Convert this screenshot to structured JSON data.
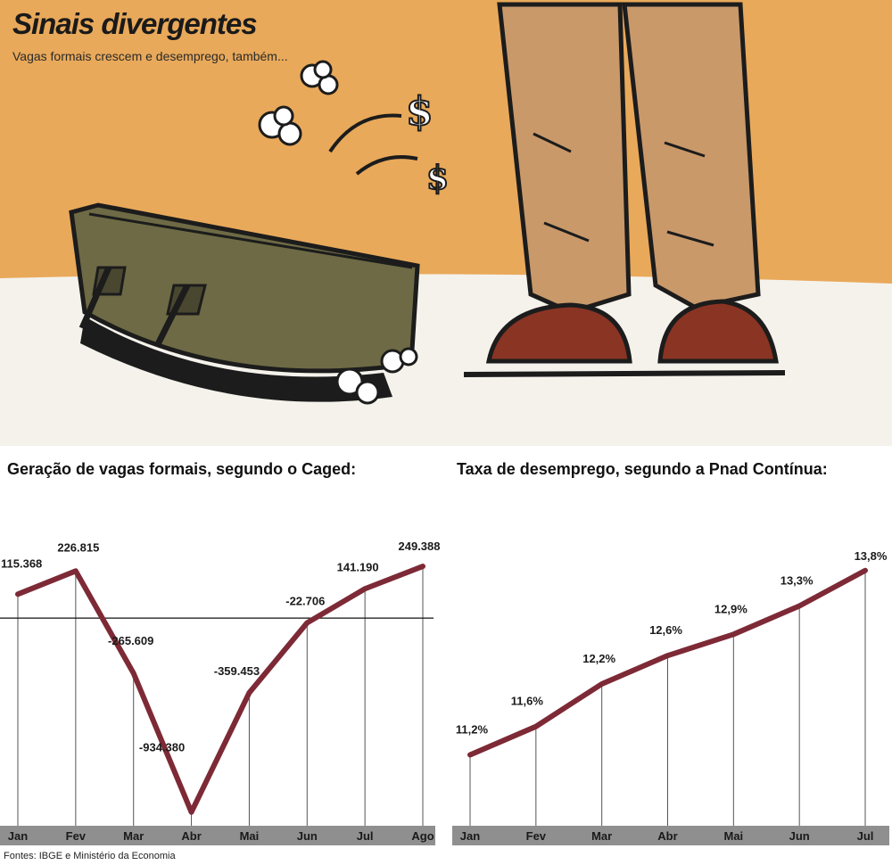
{
  "header": {
    "title": "Sinais divergentes",
    "subtitle": "Vagas formais crescem e desemprego, também..."
  },
  "colors": {
    "illustration_bg": "#e9a95a",
    "floor": "#f5f2ec",
    "line": "#7d2a36",
    "axis_band": "#8f8f8f",
    "suitcase": "#6e6a45",
    "trousers": "#c9996a",
    "shoes": "#8a3424"
  },
  "illustration": {
    "icons": [
      "suitcase-icon",
      "legs-icon",
      "dollar-sign-icon",
      "dust-cloud-icon"
    ]
  },
  "chart_data": [
    {
      "type": "line",
      "title": "Geração de vagas formais, segundo o Caged:",
      "categories": [
        "Jan",
        "Fev",
        "Mar",
        "Abr",
        "Mai",
        "Jun",
        "Jul",
        "Ago"
      ],
      "values": [
        115368,
        226815,
        -265609,
        -934380,
        -359453,
        -22706,
        141190,
        249388
      ],
      "labels": [
        "115.368",
        "226.815",
        "-265.609",
        "-934.380",
        "-359.453",
        "-22.706",
        "141.190",
        "249.388"
      ],
      "ylim": [
        -1000000,
        400000
      ],
      "zero_line": true,
      "grid": "vertical"
    },
    {
      "type": "line",
      "title": "Taxa de desemprego, segundo a Pnad Contínua:",
      "categories": [
        "Jan",
        "Fev",
        "Mar",
        "Abr",
        "Mai",
        "Jun",
        "Jul"
      ],
      "values": [
        11.2,
        11.6,
        12.2,
        12.6,
        12.9,
        13.3,
        13.8
      ],
      "labels": [
        "11,2%",
        "11,6%",
        "12,2%",
        "12,6%",
        "12,9%",
        "13,3%",
        "13,8%"
      ],
      "ylim": [
        10.2,
        14.3
      ],
      "grid": "vertical"
    }
  ],
  "footer": {
    "source": "Fontes: IBGE e Ministério da Economia"
  }
}
